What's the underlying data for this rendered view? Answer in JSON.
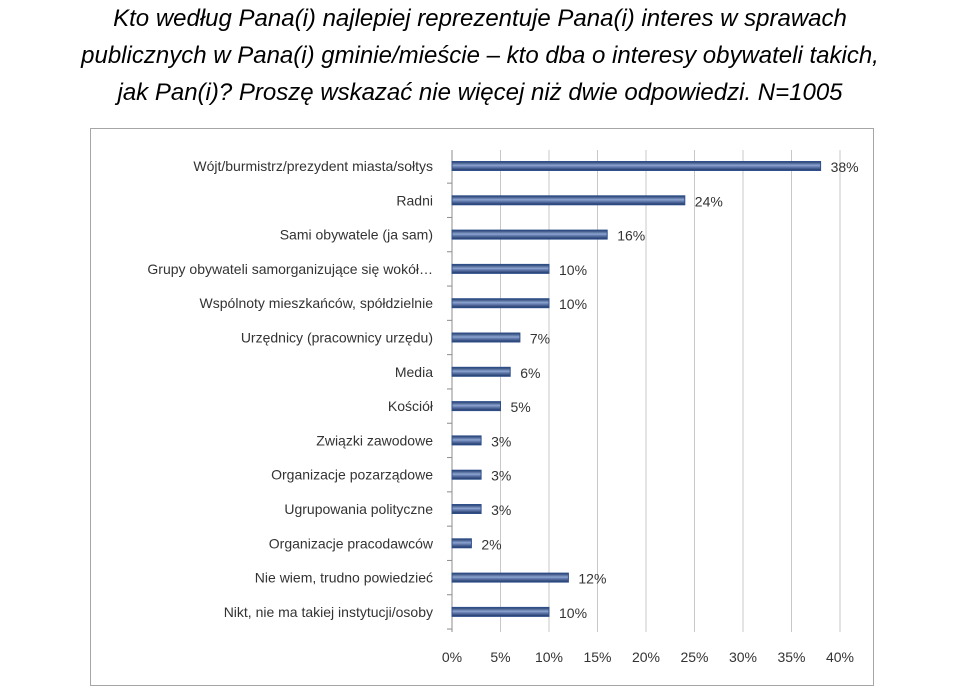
{
  "title": {
    "line1": "Kto według Pana(i) najlepiej reprezentuje Pana(i) interes w sprawach",
    "line2": "publicznych w Pana(i) gminie/mieście  –  kto dba o interesy obywateli takich,",
    "line3": "jak Pan(i)? Proszę wskazać nie więcej niż dwie odpowiedzi. N=1005"
  },
  "chart_data": {
    "type": "bar",
    "orientation": "horizontal",
    "categories": [
      "Wójt/burmistrz/prezydent miasta/sołtys",
      "Radni",
      "Sami obywatele (ja sam)",
      "Grupy obywateli samorganizujące się wokół…",
      "Wspólnoty mieszkańców, spółdzielnie",
      "Urzędnicy (pracownicy urzędu)",
      "Media",
      "Kościół",
      "Związki zawodowe",
      "Organizacje pozarządowe",
      "Ugrupowania polityczne",
      "Organizacje pracodawców",
      "Nie wiem, trudno powiedzieć",
      "Nikt, nie ma takiej instytucji/osoby"
    ],
    "values": [
      38,
      24,
      16,
      10,
      10,
      7,
      6,
      5,
      3,
      3,
      3,
      2,
      12,
      10
    ],
    "value_labels": [
      "38%",
      "24%",
      "16%",
      "10%",
      "10%",
      "7%",
      "6%",
      "5%",
      "3%",
      "3%",
      "3%",
      "2%",
      "12%",
      "10%"
    ],
    "xlim": [
      0,
      40
    ],
    "xticks": [
      0,
      5,
      10,
      15,
      20,
      25,
      30,
      35,
      40
    ],
    "xtick_labels": [
      "0%",
      "5%",
      "10%",
      "15%",
      "20%",
      "25%",
      "30%",
      "35%",
      "40%"
    ],
    "gridlines": true,
    "bar_color": "#2f4f8a"
  }
}
